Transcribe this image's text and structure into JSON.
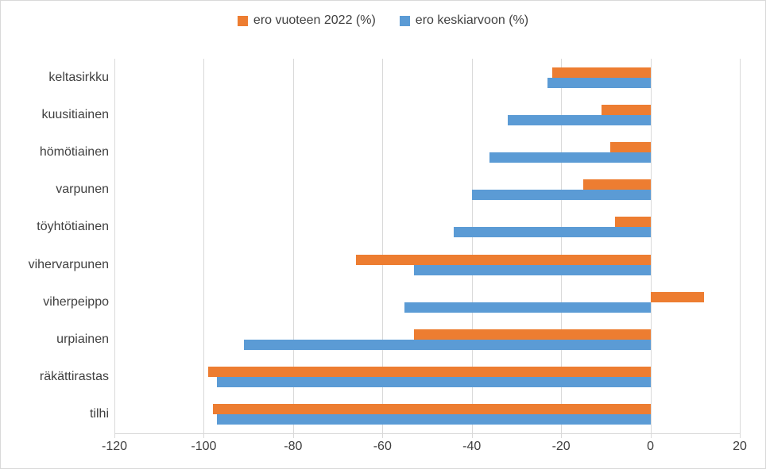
{
  "legend": {
    "items": [
      {
        "label": "ero vuoteen 2022 (%)",
        "color": "#ED7D31"
      },
      {
        "label": "ero keskiarvoon (%)",
        "color": "#5B9BD5"
      }
    ]
  },
  "colors": {
    "gridline": "#D9D9D9",
    "axis_text": "#404040",
    "background": "#FFFFFF",
    "border": "#D9D9D9"
  },
  "chart_data": {
    "type": "bar",
    "orientation": "horizontal",
    "title": "",
    "categories": [
      "keltasirkku",
      "kuusitiainen",
      "hömötiainen",
      "varpunen",
      "töyhtötiainen",
      "vihervarpunen",
      "viherpeippo",
      "urpiainen",
      "räkättirastas",
      "tilhi"
    ],
    "series": [
      {
        "name": "ero vuoteen 2022 (%)",
        "color": "#ED7D31",
        "values": [
          -22,
          -11,
          -9,
          -15,
          -8,
          -66,
          12,
          -53,
          -99,
          -98
        ]
      },
      {
        "name": "ero keskiarvoon (%)",
        "color": "#5B9BD5",
        "values": [
          -23,
          -32,
          -36,
          -40,
          -44,
          -53,
          -55,
          -91,
          -97,
          -97
        ]
      }
    ],
    "xlim": [
      -120,
      20
    ],
    "xticks": [
      -120,
      -100,
      -80,
      -60,
      -40,
      -20,
      0,
      20
    ],
    "grid": true,
    "legend_position": "top-center"
  }
}
